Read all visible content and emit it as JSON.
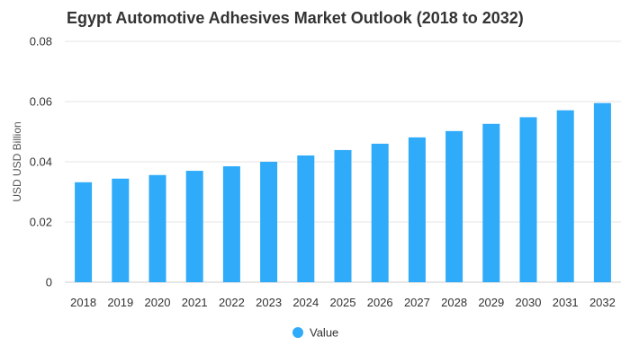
{
  "chart_data": {
    "type": "bar",
    "title": "Egypt Automotive Adhesives Market Outlook (2018 to 2032)",
    "xlabel": "",
    "ylabel": "USD USD Billion",
    "categories": [
      "2018",
      "2019",
      "2020",
      "2021",
      "2022",
      "2023",
      "2024",
      "2025",
      "2026",
      "2027",
      "2028",
      "2029",
      "2030",
      "2031",
      "2032"
    ],
    "series": [
      {
        "name": "Value",
        "values": [
          0.0332,
          0.0344,
          0.0356,
          0.037,
          0.0385,
          0.04,
          0.0421,
          0.0439,
          0.046,
          0.0481,
          0.0502,
          0.0526,
          0.0548,
          0.0571,
          0.0595
        ]
      }
    ],
    "ylim": [
      0,
      0.08
    ],
    "yticks": [
      "0",
      "0.02",
      "0.04",
      "0.06",
      "0.08"
    ],
    "grid": true,
    "legend_position": "bottom-center",
    "colors": {
      "bar": "#2fabf9",
      "grid": "#e6e6e6",
      "text": "#333333",
      "title": "#333333"
    }
  }
}
